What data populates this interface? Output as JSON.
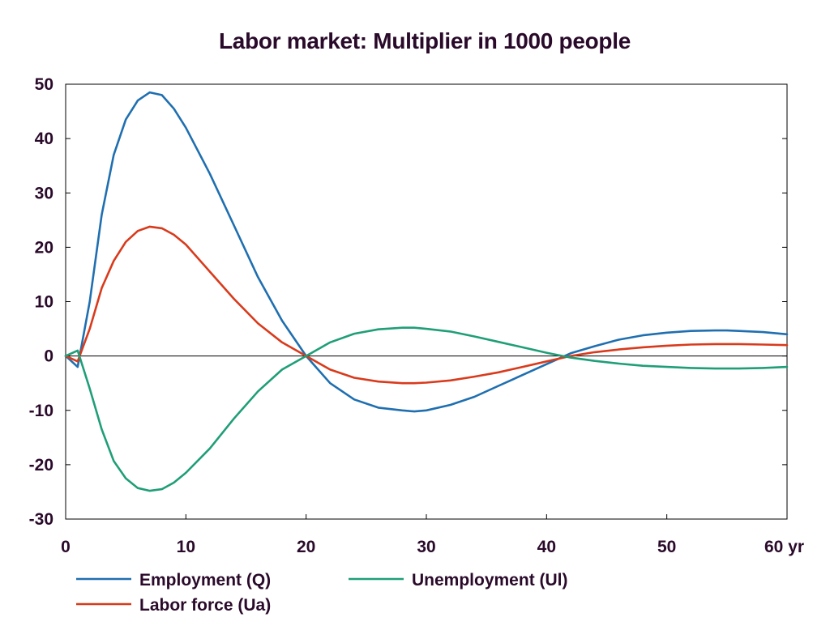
{
  "chart_data": {
    "type": "line",
    "title": "Labor market: Multiplier in 1000 people",
    "xlim": [
      0,
      60
    ],
    "ylim": [
      -30,
      50
    ],
    "x_ticks": [
      0,
      10,
      20,
      30,
      40,
      50,
      60
    ],
    "x_tick_labels": [
      "0",
      "10",
      "20",
      "30",
      "40",
      "50",
      "60 yr"
    ],
    "y_ticks": [
      -30,
      -20,
      -10,
      0,
      10,
      20,
      30,
      40,
      50
    ],
    "y_tick_labels": [
      "-30",
      "-20",
      "-10",
      "0",
      "10",
      "20",
      "30",
      "40",
      "50"
    ],
    "grid": false,
    "zero_line": true,
    "legend_position": "bottom",
    "series": [
      {
        "name": "Employment (Q)",
        "color": "#1f6fb0",
        "x": [
          0,
          1,
          2,
          3,
          4,
          5,
          6,
          7,
          8,
          9,
          10,
          12,
          14,
          16,
          18,
          20,
          22,
          24,
          26,
          28,
          29,
          30,
          32,
          34,
          36,
          38,
          40,
          42,
          44,
          46,
          48,
          50,
          52,
          54,
          55,
          56,
          58,
          60
        ],
        "y": [
          0,
          -2,
          10,
          26,
          37,
          43.5,
          47,
          48.5,
          48,
          45.5,
          42,
          33.5,
          24,
          14.5,
          6.5,
          0,
          -5,
          -8,
          -9.5,
          -10,
          -10.2,
          -10,
          -9,
          -7.5,
          -5.5,
          -3.5,
          -1.5,
          0.5,
          1.8,
          3,
          3.8,
          4.3,
          4.6,
          4.7,
          4.7,
          4.6,
          4.4,
          4
        ]
      },
      {
        "name": "Labor force (Ua)",
        "color": "#d93a1c",
        "x": [
          0,
          1,
          2,
          3,
          4,
          5,
          6,
          7,
          8,
          9,
          10,
          12,
          14,
          16,
          18,
          20,
          22,
          24,
          26,
          28,
          29,
          30,
          32,
          34,
          36,
          38,
          40,
          42,
          44,
          46,
          48,
          50,
          52,
          54,
          56,
          58,
          60
        ],
        "y": [
          0,
          -1,
          5,
          12.5,
          17.5,
          21,
          23,
          23.8,
          23.5,
          22.3,
          20.5,
          15.5,
          10.5,
          6,
          2.5,
          0,
          -2.5,
          -4,
          -4.7,
          -5,
          -5,
          -4.9,
          -4.5,
          -3.8,
          -3,
          -2,
          -1,
          0,
          0.7,
          1.2,
          1.6,
          1.9,
          2.1,
          2.2,
          2.2,
          2.1,
          2
        ]
      },
      {
        "name": "Unemployment (Ul)",
        "color": "#1f9e77",
        "x": [
          0,
          1,
          2,
          3,
          4,
          5,
          6,
          7,
          8,
          9,
          10,
          12,
          14,
          16,
          18,
          20,
          22,
          24,
          26,
          28,
          29,
          30,
          32,
          34,
          36,
          38,
          40,
          42,
          44,
          46,
          48,
          50,
          52,
          54,
          56,
          58,
          60
        ],
        "y": [
          0,
          1,
          -6,
          -13.5,
          -19.3,
          -22.5,
          -24.3,
          -24.8,
          -24.5,
          -23.3,
          -21.5,
          -17,
          -11.5,
          -6.5,
          -2.5,
          0,
          2.5,
          4.1,
          4.9,
          5.2,
          5.2,
          5,
          4.5,
          3.6,
          2.6,
          1.6,
          0.6,
          -0.3,
          -0.9,
          -1.4,
          -1.8,
          -2,
          -2.2,
          -2.3,
          -2.3,
          -2.2,
          -2
        ]
      }
    ]
  }
}
